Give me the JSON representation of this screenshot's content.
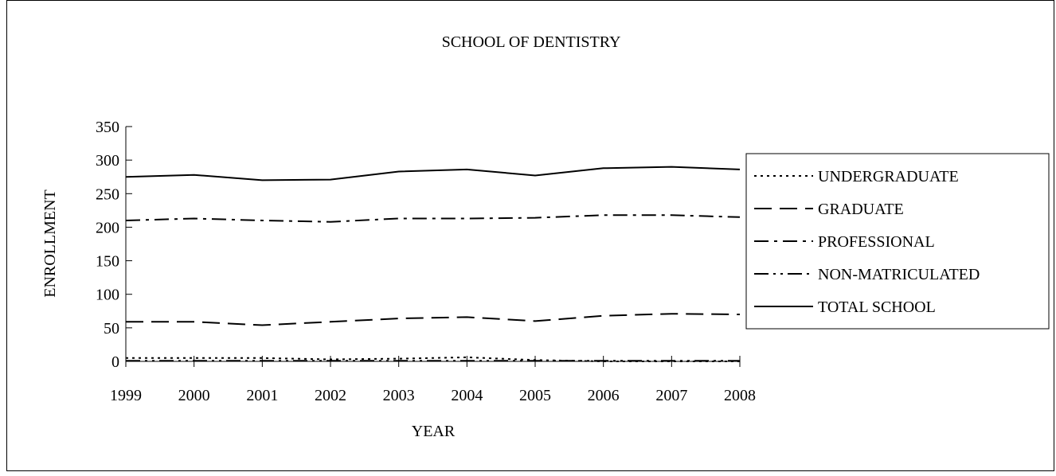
{
  "chart_data": {
    "type": "line",
    "title": "SCHOOL OF DENTISTRY",
    "xlabel": "YEAR",
    "ylabel": "ENROLLMENT",
    "x": [
      "1999",
      "2000",
      "2001",
      "2002",
      "2003",
      "2004",
      "2005",
      "2006",
      "2007",
      "2008"
    ],
    "ylim": [
      0,
      350
    ],
    "yticks": [
      0,
      50,
      100,
      150,
      200,
      250,
      300,
      350
    ],
    "grid": false,
    "legend_position": "right",
    "series": [
      {
        "name": "UNDERGRADUATE",
        "style": "dotted",
        "values": [
          5,
          5,
          5,
          3,
          4,
          6,
          2,
          0,
          0,
          0
        ]
      },
      {
        "name": "GRADUATE",
        "style": "dashed",
        "values": [
          59,
          59,
          54,
          59,
          64,
          66,
          60,
          68,
          71,
          70
        ]
      },
      {
        "name": "PROFESSIONAL",
        "style": "dash-dot",
        "values": [
          210,
          213,
          210,
          208,
          213,
          213,
          214,
          218,
          218,
          215
        ]
      },
      {
        "name": "NON-MATRICULATED",
        "style": "dash-dot-dot",
        "values": [
          1,
          1,
          1,
          1,
          1,
          1,
          1,
          1,
          1,
          1
        ]
      },
      {
        "name": "TOTAL SCHOOL",
        "style": "solid",
        "values": [
          275,
          278,
          270,
          271,
          283,
          286,
          277,
          288,
          290,
          286
        ]
      }
    ]
  }
}
